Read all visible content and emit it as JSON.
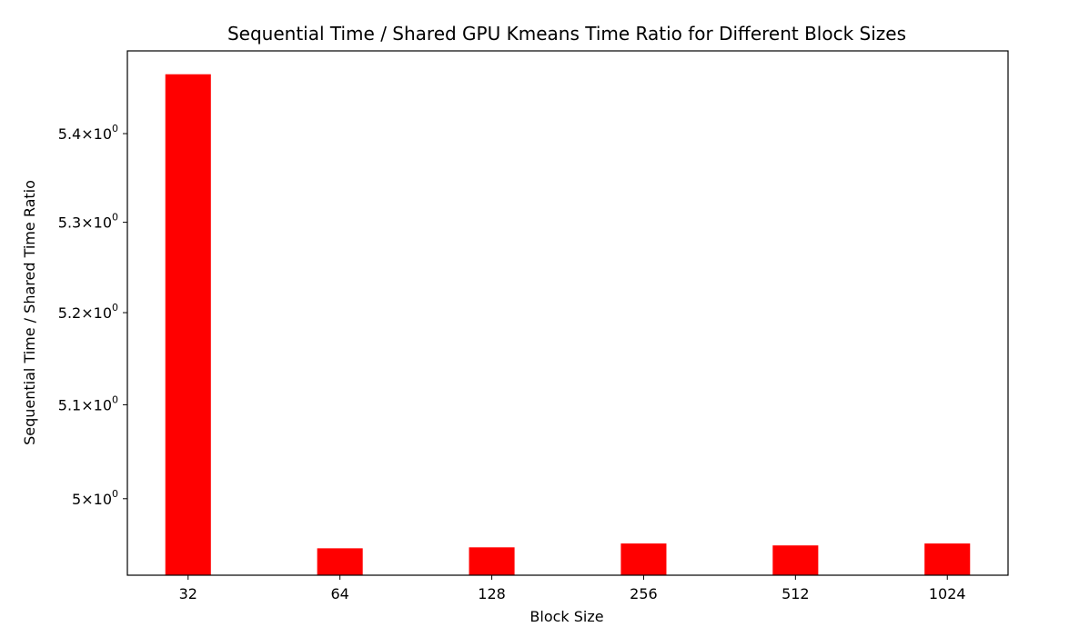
{
  "chart_data": {
    "type": "bar",
    "title": "Sequential Time / Shared GPU Kmeans Time Ratio for Different Block Sizes",
    "xlabel": "Block Size",
    "ylabel": "Sequential Time / Shared Time Ratio",
    "categories": [
      "32",
      "64",
      "128",
      "256",
      "512",
      "1024"
    ],
    "values": [
      5.468,
      4.948,
      4.949,
      4.953,
      4.951,
      4.953
    ],
    "y_scale": "log",
    "ylim": [
      4.92,
      5.495
    ],
    "y_ticks": [
      {
        "value": 5.0,
        "mantissa": "5",
        "base": "10",
        "exp": "0"
      },
      {
        "value": 5.1,
        "mantissa": "5.1",
        "base": "10",
        "exp": "0"
      },
      {
        "value": 5.2,
        "mantissa": "5.2",
        "base": "10",
        "exp": "0"
      },
      {
        "value": 5.3,
        "mantissa": "5.3",
        "base": "10",
        "exp": "0"
      },
      {
        "value": 5.4,
        "mantissa": "5.4",
        "base": "10",
        "exp": "0"
      }
    ],
    "bar_color": "#ff0000",
    "grid": false,
    "legend": "none"
  }
}
